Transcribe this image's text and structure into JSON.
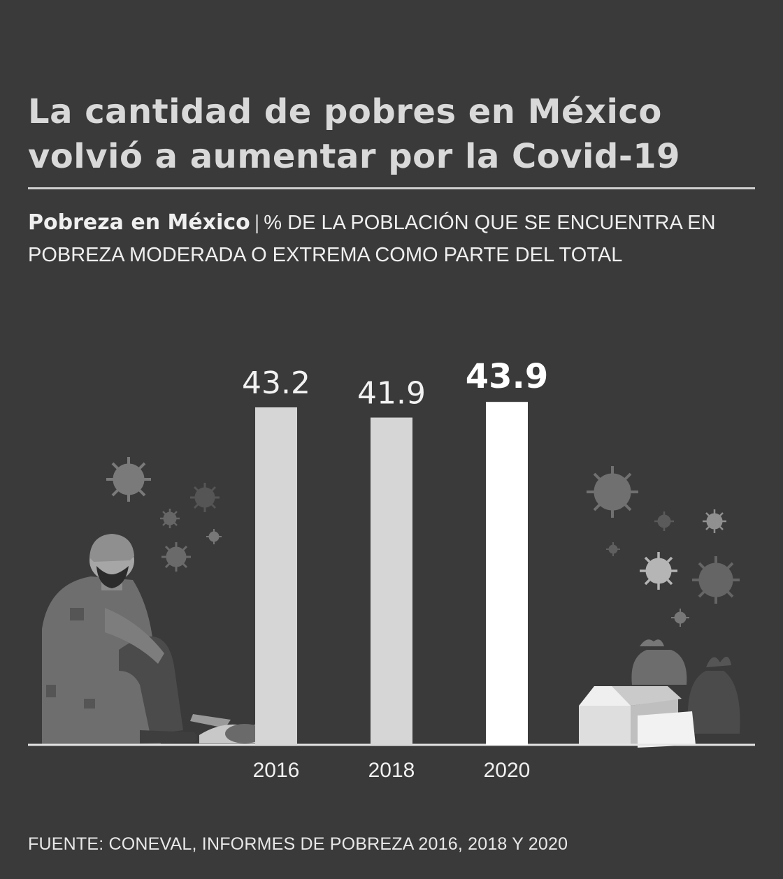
{
  "header": {
    "title_line1": "La cantidad de pobres en México",
    "title_line2": "volvió a aumentar por la Covid-19"
  },
  "subtitle": {
    "bold": "Pobreza en México",
    "separator": "|",
    "line1": "% DE LA POBLACIÓN QUE SE ENCUENTRA EN",
    "line2": "POBREZA MODERADA O EXTREMA COMO PARTE DEL TOTAL"
  },
  "source": "FUENTE: CONEVAL, INFORMES DE POBREZA 2016, 2018 Y 2020",
  "colors": {
    "background": "#3a3a3a",
    "bar": "#d6d6d6",
    "bar_highlight": "#ffffff"
  },
  "chart_data": {
    "type": "bar",
    "categories": [
      "2016",
      "2018",
      "2020"
    ],
    "values": [
      43.2,
      41.9,
      43.9
    ],
    "value_labels": [
      "43.2",
      "41.9",
      "43.9"
    ],
    "highlight_index": 2,
    "ylim": [
      0,
      50
    ],
    "grid": false,
    "legend": "none"
  }
}
